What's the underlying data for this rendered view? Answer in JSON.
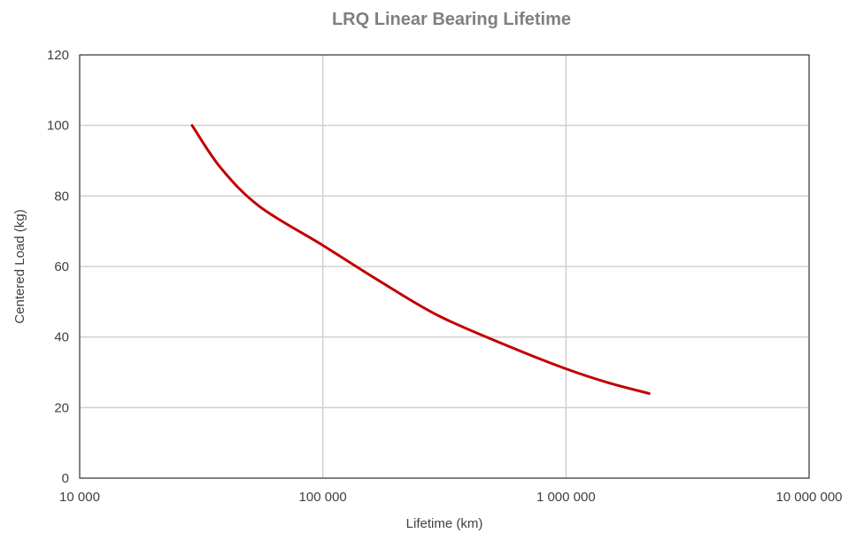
{
  "chart_data": {
    "type": "line",
    "title": "LRQ Linear Bearing Lifetime",
    "xlabel": "Lifetime (km)",
    "ylabel": "Centered Load (kg)",
    "x_scale": "log",
    "xlim": [
      10000,
      10000000
    ],
    "ylim": [
      0,
      120
    ],
    "grid": true,
    "x_ticks": [
      {
        "value": 10000,
        "label": "10 000"
      },
      {
        "value": 100000,
        "label": "100 000"
      },
      {
        "value": 1000000,
        "label": "1 000 000"
      },
      {
        "value": 10000000,
        "label": "10 000 000"
      }
    ],
    "y_ticks": [
      {
        "value": 0,
        "label": "0"
      },
      {
        "value": 20,
        "label": "20"
      },
      {
        "value": 40,
        "label": "40"
      },
      {
        "value": 60,
        "label": "60"
      },
      {
        "value": 80,
        "label": "80"
      },
      {
        "value": 100,
        "label": "100"
      },
      {
        "value": 120,
        "label": "120"
      }
    ],
    "series": [
      {
        "color": "#c00000",
        "points": [
          {
            "x": 29000,
            "y": 100
          },
          {
            "x": 38000,
            "y": 88
          },
          {
            "x": 55000,
            "y": 77
          },
          {
            "x": 100000,
            "y": 66
          },
          {
            "x": 170000,
            "y": 56
          },
          {
            "x": 300000,
            "y": 46
          },
          {
            "x": 600000,
            "y": 37
          },
          {
            "x": 1000000,
            "y": 31
          },
          {
            "x": 1500000,
            "y": 27
          },
          {
            "x": 2200000,
            "y": 24
          }
        ]
      }
    ]
  }
}
